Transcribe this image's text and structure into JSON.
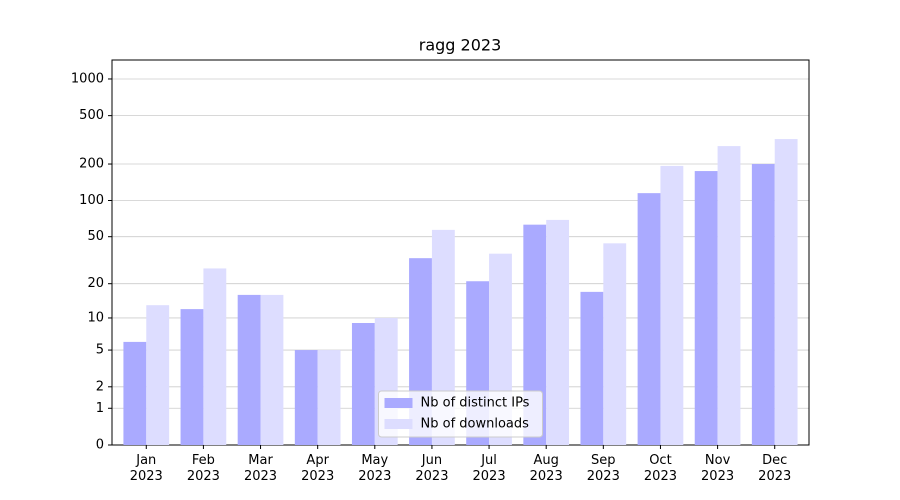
{
  "chart_data": {
    "type": "bar",
    "title": "ragg 2023",
    "categories": [
      "Jan\n2023",
      "Feb\n2023",
      "Mar\n2023",
      "Apr\n2023",
      "May\n2023",
      "Jun\n2023",
      "Jul\n2023",
      "Aug\n2023",
      "Sep\n2023",
      "Oct\n2023",
      "Nov\n2023",
      "Dec\n2023"
    ],
    "series": [
      {
        "name": "Nb of distinct IPs",
        "color": "#aaaaff",
        "values": [
          6,
          12,
          16,
          5,
          9,
          33,
          21,
          63,
          17,
          115,
          175,
          200
        ]
      },
      {
        "name": "Nb of downloads",
        "color": "#ddddff",
        "values": [
          13,
          27,
          16,
          5,
          10,
          57,
          36,
          69,
          44,
          193,
          281,
          321
        ]
      }
    ],
    "yscale": "log1p",
    "ylim": [
      0,
      1431
    ],
    "yticks": [
      0,
      1,
      2,
      5,
      10,
      20,
      50,
      100,
      200,
      500,
      1000
    ],
    "grid": true,
    "legend": "lower center"
  }
}
